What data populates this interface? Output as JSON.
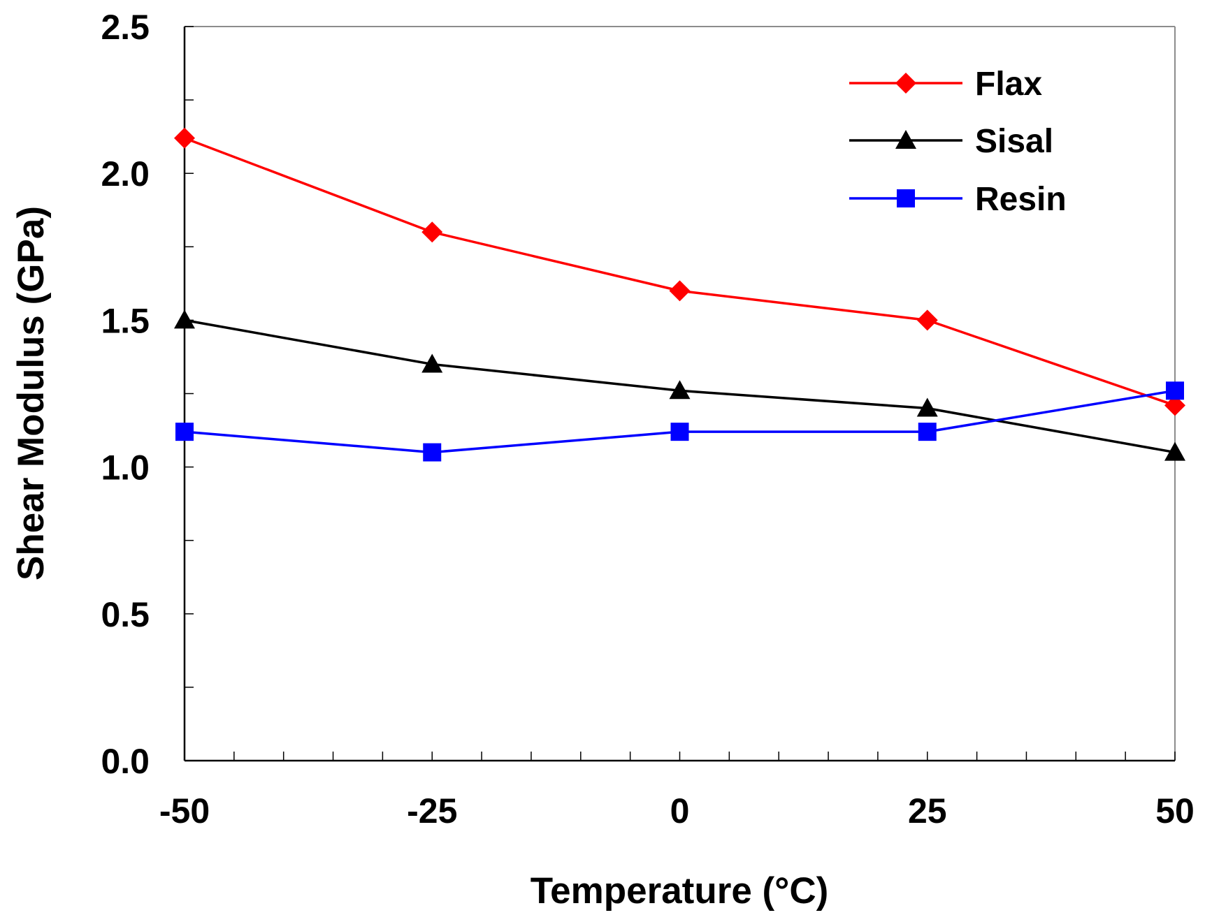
{
  "chart_data": {
    "type": "line",
    "title": "",
    "xlabel": "Temperature (°C)",
    "ylabel": "Shear Modulus (GPa)",
    "x": [
      -50,
      -25,
      0,
      25,
      50
    ],
    "xlim": [
      -50,
      50
    ],
    "ylim": [
      0,
      2.5
    ],
    "x_ticks": [
      "-50",
      "-25",
      "0",
      "25",
      "50"
    ],
    "y_ticks": [
      "0.0",
      "0.5",
      "1.0",
      "1.5",
      "2.0",
      "2.5"
    ],
    "x_minor_step": 5,
    "y_minor_step": 0.25,
    "grid": false,
    "legend": "top-right",
    "series": [
      {
        "name": "Flax",
        "values": [
          2.12,
          1.8,
          1.6,
          1.5,
          1.21
        ],
        "color": "#FF0000",
        "marker": "diamond"
      },
      {
        "name": "Sisal",
        "values": [
          1.5,
          1.35,
          1.26,
          1.2,
          1.05
        ],
        "color": "#000000",
        "marker": "triangle"
      },
      {
        "name": "Resin",
        "values": [
          1.12,
          1.05,
          1.12,
          1.12,
          1.26
        ],
        "color": "#0000FF",
        "marker": "square"
      }
    ]
  }
}
